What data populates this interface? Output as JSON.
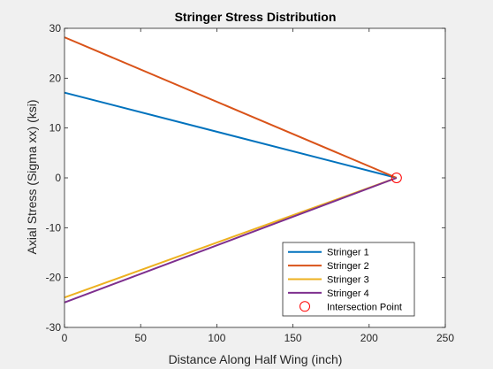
{
  "chart_data": {
    "type": "line",
    "title": "Stringer Stress Distribution",
    "xlabel": "Distance Along Half Wing (inch)",
    "ylabel": "Axial Stress (Sigma xx) (ksi)",
    "xlim": [
      0,
      250
    ],
    "ylim": [
      -30,
      30
    ],
    "xticks": [
      0,
      50,
      100,
      150,
      200,
      250
    ],
    "yticks": [
      -30,
      -20,
      -10,
      0,
      10,
      20,
      30
    ],
    "grid": false,
    "legend_location": "bottom-right",
    "series": [
      {
        "name": "Stringer 1",
        "color": "#0072BD",
        "x": [
          0,
          218
        ],
        "y": [
          17.1,
          0
        ]
      },
      {
        "name": "Stringer 2",
        "color": "#D95319",
        "x": [
          0,
          218
        ],
        "y": [
          28.2,
          0
        ]
      },
      {
        "name": "Stringer 3",
        "color": "#EDB120",
        "x": [
          0,
          218
        ],
        "y": [
          -24.0,
          0
        ]
      },
      {
        "name": "Stringer 4",
        "color": "#7E2F8E",
        "x": [
          0,
          218
        ],
        "y": [
          -25.0,
          0
        ]
      }
    ],
    "markers": [
      {
        "name": "Intersection Point",
        "color": "#FF0000",
        "marker": "circle",
        "x": 218,
        "y": 0
      }
    ]
  }
}
